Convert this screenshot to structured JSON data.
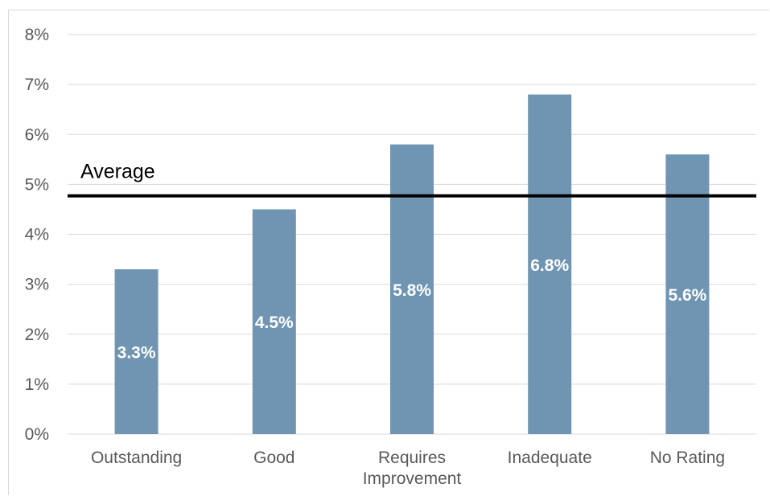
{
  "chart_data": {
    "type": "bar",
    "categories": [
      "Outstanding",
      "Good",
      "Requires Improvement",
      "Inadequate",
      "No Rating"
    ],
    "category_lines": [
      [
        "Outstanding"
      ],
      [
        "Good"
      ],
      [
        "Requires",
        "Improvement"
      ],
      [
        "Inadequate"
      ],
      [
        "No Rating"
      ]
    ],
    "values": [
      3.3,
      4.5,
      5.8,
      6.8,
      5.6
    ],
    "data_labels": [
      "3.3%",
      "4.5%",
      "5.8%",
      "6.8%",
      "5.6%"
    ],
    "ylim": [
      0,
      8
    ],
    "yticks": [
      0,
      1,
      2,
      3,
      4,
      5,
      6,
      7,
      8
    ],
    "ytick_labels": [
      "0%",
      "1%",
      "2%",
      "3%",
      "4%",
      "5%",
      "6%",
      "7%",
      "8%"
    ],
    "reference_line": {
      "label": "Average",
      "value": 4.77
    },
    "grid": true,
    "legend": "none",
    "colors": {
      "bar": "#6f95b3",
      "grid": "#d9d9d9",
      "reference": "#000000",
      "data_label": "#ffffff"
    }
  }
}
